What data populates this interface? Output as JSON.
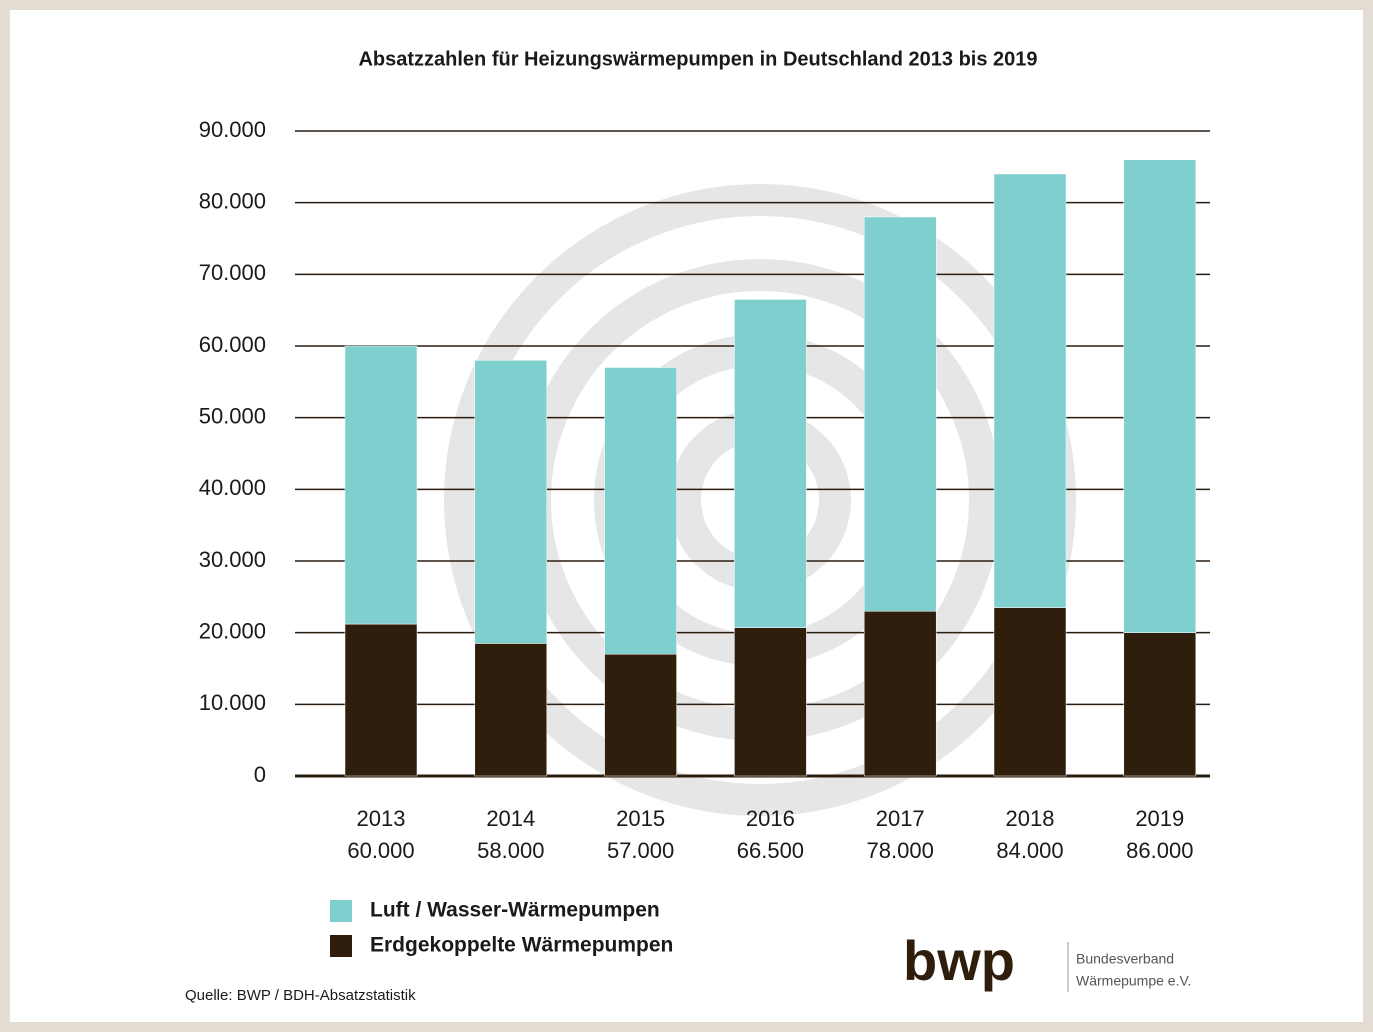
{
  "chart_data": {
    "type": "stacked_bar",
    "title": "Absatzzahlen für Heizungswärmepumpen in Deutschland 2013 bis 2019",
    "categories": [
      "2013",
      "2014",
      "2015",
      "2016",
      "2017",
      "2018",
      "2019"
    ],
    "series": [
      {
        "name": "Erdgekoppelte Wärmepumpen",
        "color": "#2f1e0c",
        "values": [
          21200,
          18500,
          17000,
          20700,
          23000,
          23500,
          20000
        ]
      },
      {
        "name": "Luft / Wasser-Wärmepumpen",
        "color": "#7ecfcd",
        "values": [
          38800,
          39500,
          40000,
          45800,
          55000,
          60500,
          66000
        ]
      }
    ],
    "totals": {
      "values": [
        60000,
        58000,
        57000,
        66500,
        78000,
        84000,
        86000
      ],
      "value_labels": [
        "60.000",
        "58.000",
        "57.000",
        "66.500",
        "78.000",
        "84.000",
        "86.000"
      ]
    },
    "ylim": [
      0,
      90000
    ],
    "yticks": [
      0,
      {
        "value": 10000,
        "label": "10.000"
      },
      {
        "value": 20000,
        "label": "20.000"
      },
      {
        "value": 30000,
        "label": "30.000"
      },
      {
        "value": 40000,
        "label": "40.000"
      },
      {
        "value": 50000,
        "label": "50.000"
      },
      {
        "value": 60000,
        "label": "60.000"
      },
      {
        "value": 70000,
        "label": "70.000"
      },
      {
        "value": 80000,
        "label": "80.000"
      },
      {
        "value": 90000,
        "label": "90.000"
      }
    ],
    "grid": true,
    "source": "Quelle: BWP / BDH-Absatzstatistik",
    "logo": {
      "mark": "bwp",
      "line1": "Bundesverband",
      "line2": "Wärmepumpe e.V."
    }
  }
}
